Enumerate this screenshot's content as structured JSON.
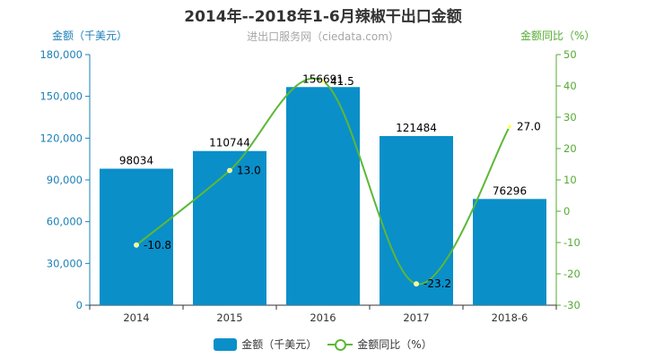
{
  "chart_data": {
    "type": "bar",
    "title": "2014年--2018年1-6月辣椒干出口金额",
    "subtitle": "进出口服务网（ciedata.com）",
    "categories": [
      "2014",
      "2015",
      "2016",
      "2017",
      "2018-6"
    ],
    "series": [
      {
        "name": "金额（千美元）",
        "type": "bar",
        "axis": "left",
        "values": [
          98034,
          110744,
          156691,
          121484,
          76296
        ]
      },
      {
        "name": "金额同比（%）",
        "type": "line",
        "axis": "right",
        "values": [
          -10.8,
          13.0,
          41.5,
          -23.2,
          27.0
        ]
      }
    ],
    "y_left": {
      "label": "金额（千美元）",
      "min": 0,
      "max": 180000,
      "ticks": [
        0,
        30000,
        60000,
        90000,
        120000,
        150000,
        180000
      ],
      "tick_labels": [
        "0",
        "30,000",
        "60,000",
        "90,000",
        "120,000",
        "150,000",
        "180,000"
      ]
    },
    "y_right": {
      "label": "金额同比（%）",
      "min": -30,
      "max": 50,
      "ticks": [
        -30,
        -20,
        -10,
        0,
        10,
        20,
        30,
        40,
        50
      ],
      "tick_labels": [
        "-30",
        "-20",
        "-10",
        "0",
        "10",
        "20",
        "30",
        "40",
        "50"
      ]
    },
    "bar_labels": [
      "98034",
      "110744",
      "156691",
      "121484",
      "76296"
    ],
    "line_labels": [
      "-10.8",
      "13.0",
      "41.5",
      "-23.2",
      "27.0"
    ],
    "legend": {
      "placement": "bottom",
      "items": [
        "金额（千美元）",
        "金额同比（%）"
      ]
    },
    "colors": {
      "bar": "#0a8fc9",
      "line": "#5cb837",
      "left_axis": "#1a7fb8",
      "right_axis": "#55aa33"
    }
  }
}
